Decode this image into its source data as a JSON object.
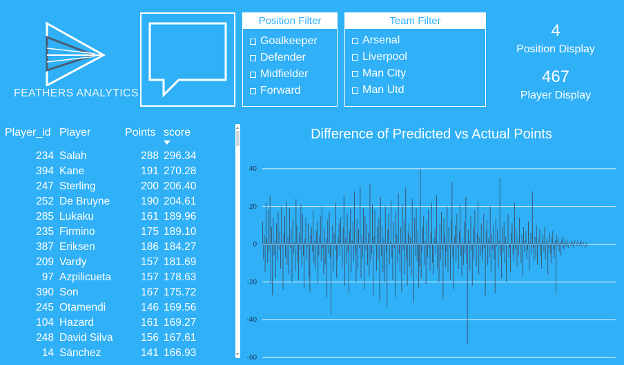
{
  "logo": {
    "text": "FEATHERS ANALYTICS"
  },
  "position_filter": {
    "title": "Position Filter",
    "items": [
      "Goalkeeper",
      "Defender",
      "Midfielder",
      "Forward"
    ]
  },
  "team_filter": {
    "title": "Team Filter",
    "items": [
      "Arsenal",
      "Liverpool",
      "Man City",
      "Man Utd"
    ]
  },
  "kpis": {
    "position": {
      "value": "4",
      "label": "Position Display"
    },
    "player": {
      "value": "467",
      "label": "Player Display"
    }
  },
  "table": {
    "headers": {
      "id": "Player_id",
      "player": "Player",
      "points": "Points",
      "score": "score"
    },
    "sort_column": "score",
    "rows": [
      {
        "id": "234",
        "player": "Salah",
        "points": "288",
        "score": "296.34"
      },
      {
        "id": "394",
        "player": "Kane",
        "points": "191",
        "score": "270.28"
      },
      {
        "id": "247",
        "player": "Sterling",
        "points": "200",
        "score": "206.40"
      },
      {
        "id": "252",
        "player": "De Bruyne",
        "points": "190",
        "score": "204.61"
      },
      {
        "id": "285",
        "player": "Lukaku",
        "points": "161",
        "score": "189.96"
      },
      {
        "id": "235",
        "player": "Firmino",
        "points": "175",
        "score": "189.10"
      },
      {
        "id": "387",
        "player": "Eriksen",
        "points": "186",
        "score": "184.27"
      },
      {
        "id": "209",
        "player": "Vardy",
        "points": "157",
        "score": "181.69"
      },
      {
        "id": "97",
        "player": "Azpilicueta",
        "points": "157",
        "score": "178.63"
      },
      {
        "id": "390",
        "player": "Son",
        "points": "167",
        "score": "175.72"
      },
      {
        "id": "245",
        "player": "Otamendi",
        "points": "146",
        "score": "169.56"
      },
      {
        "id": "104",
        "player": "Hazard",
        "points": "161",
        "score": "169.27"
      },
      {
        "id": "248",
        "player": "David Silva",
        "points": "156",
        "score": "167.61"
      },
      {
        "id": "14",
        "player": "Sánchez",
        "points": "141",
        "score": "166.93"
      }
    ]
  },
  "chart_data": {
    "type": "bar",
    "title": "Difference of Predicted vs Actual Points",
    "xlabel": "",
    "ylabel": "",
    "ylim": [
      -60,
      40
    ],
    "yticks": [
      40,
      20,
      0,
      -20,
      -40,
      -60
    ],
    "grid": true,
    "bar_color": "#3a5068",
    "values": [
      12,
      -8,
      5,
      -15,
      22,
      3,
      -10,
      18,
      -4,
      26,
      -21,
      9,
      -27,
      14,
      -6,
      2,
      -18,
      11,
      -9,
      17,
      -3,
      7,
      -13,
      20,
      -1,
      -24,
      6,
      15,
      -7,
      23,
      -11,
      4,
      -16,
      19,
      -2,
      8,
      -20,
      13,
      -5,
      1,
      -14,
      24,
      10,
      -9,
      -19,
      6,
      -3,
      21,
      -12,
      16,
      -6,
      -23,
      3,
      14,
      -8,
      -1,
      11,
      -17,
      -25,
      5,
      9,
      -4,
      18,
      -10,
      2,
      -13,
      7,
      12,
      -21,
      -6,
      4,
      15,
      -9,
      20,
      -2,
      -16,
      8,
      -11,
      3,
      -28,
      13,
      -5,
      17,
      -7,
      -37,
      1,
      10,
      -14,
      6,
      -3,
      22,
      -18,
      -8,
      4,
      11,
      -6,
      14,
      -1,
      -12,
      9,
      26,
      -22,
      3,
      -10,
      16,
      -4,
      -26,
      7,
      19,
      -15,
      2,
      12,
      -9,
      28,
      -5,
      -20,
      13,
      -13,
      8,
      -2,
      30,
      -18,
      5,
      -7,
      19,
      -24,
      15,
      -3,
      11,
      -11,
      6,
      -17,
      32,
      -9,
      -5,
      21,
      -27,
      4,
      18,
      -1,
      -14,
      9,
      -8,
      14,
      -30,
      25,
      -6,
      10,
      -15,
      3,
      -20,
      20,
      -4,
      -33,
      8,
      16,
      -11,
      1,
      23,
      -7,
      -19,
      12,
      -2,
      -28,
      17,
      5,
      -10,
      27,
      -5,
      -14,
      9,
      -25,
      21,
      -3,
      13,
      -16,
      30,
      -8,
      -22,
      6,
      11,
      -12,
      4,
      -17,
      24,
      -1,
      -31,
      14,
      -6,
      19,
      -9,
      7,
      -23,
      -12,
      40,
      -18,
      -4,
      9,
      15,
      -11,
      2,
      -21,
      12,
      -7,
      18,
      -2,
      -14,
      6,
      22,
      -10,
      -16,
      3,
      8,
      -5,
      26,
      -13,
      1,
      -20,
      11,
      -8,
      17,
      -3,
      -29,
      14,
      5,
      -12,
      -4,
      20,
      -15,
      9,
      -1,
      -19,
      13,
      33,
      -7,
      -24,
      4,
      10,
      -9,
      16,
      -2,
      -13,
      7,
      21,
      -6,
      -17,
      3,
      -11,
      12,
      -5,
      25,
      -10,
      -53,
      8,
      2,
      -14,
      15,
      -3,
      -22,
      9,
      -8,
      18,
      -1,
      -12,
      6,
      23,
      -16,
      4,
      -6,
      11,
      -9,
      -4,
      16,
      -2,
      -27,
      7,
      13,
      -11,
      3,
      -7,
      20,
      -15,
      5,
      -3,
      10,
      -8,
      -26,
      14,
      -1,
      8,
      -13,
      2,
      35,
      -6,
      -18,
      9,
      -4,
      12,
      -10,
      4,
      -20,
      1,
      16,
      -7,
      -2,
      -15,
      6,
      11,
      -5,
      -9,
      22,
      -3,
      8,
      -12,
      3,
      -6,
      14,
      -1,
      -10,
      5,
      -17,
      9,
      -4,
      2,
      7,
      -8,
      -3,
      12,
      -14,
      1,
      6,
      -5,
      28,
      -2,
      -9,
      4,
      -7,
      10,
      -11,
      3,
      -1,
      8,
      -6,
      -13,
      2,
      5,
      -4,
      9,
      -8,
      1,
      3,
      -16,
      -2,
      6,
      -5,
      -10,
      4,
      7,
      -3,
      -7,
      2,
      -26,
      5,
      -1,
      3,
      -4,
      1,
      -6,
      2,
      4,
      -2,
      -3,
      3,
      1,
      -1,
      2,
      -2,
      1,
      0,
      -1,
      2,
      1,
      -1,
      -2,
      2,
      0,
      1,
      -1,
      2,
      0,
      -1,
      1,
      2,
      -1,
      0,
      1,
      0,
      -2,
      1,
      0,
      -1
    ]
  }
}
